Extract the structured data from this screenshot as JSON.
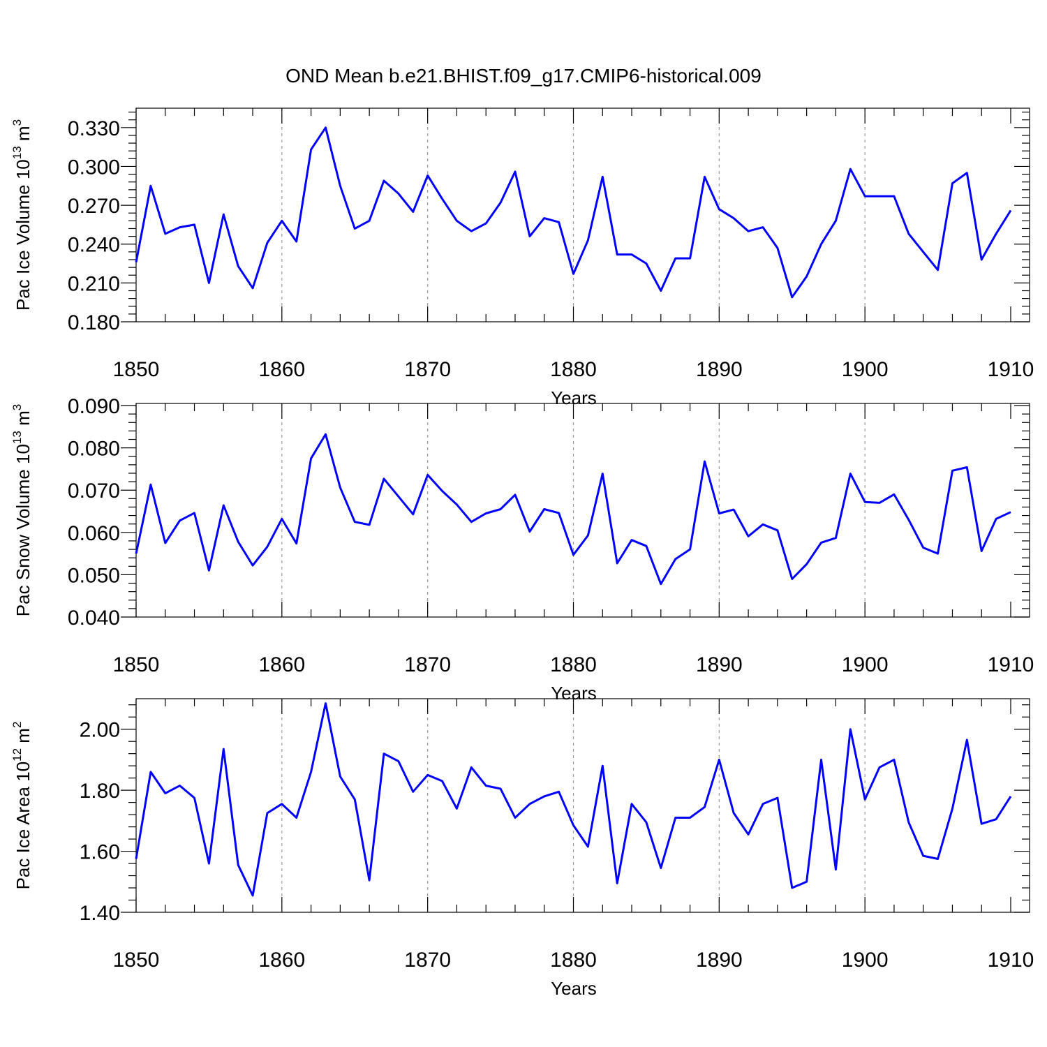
{
  "title": "OND Mean b.e21.BHIST.f09_g17.CMIP6-historical.009",
  "line_color": "#0000ff",
  "grid_color": "#999999",
  "chart_data": [
    {
      "type": "line",
      "name": "pac-ice-volume",
      "xlabel": "Years",
      "ylabel_prefix": "Pac Ice Volume 10",
      "ylabel_exp": "13",
      "ylabel_unit": " m",
      "ylabel_unit_exp": "3",
      "xlim": [
        1850,
        1910
      ],
      "ylim": [
        0.18,
        0.345
      ],
      "x_ticks": [
        "1850",
        "1860",
        "1870",
        "1880",
        "1890",
        "1900",
        "1910"
      ],
      "y_ticks": [
        "0.180",
        "0.210",
        "0.240",
        "0.270",
        "0.300",
        "0.330"
      ],
      "x_grid": [
        1860,
        1870,
        1880,
        1890,
        1900
      ],
      "x": [
        1850,
        1851,
        1852,
        1853,
        1854,
        1855,
        1856,
        1857,
        1858,
        1859,
        1860,
        1861,
        1862,
        1863,
        1864,
        1865,
        1866,
        1867,
        1868,
        1869,
        1870,
        1871,
        1872,
        1873,
        1874,
        1875,
        1876,
        1877,
        1878,
        1879,
        1880,
        1881,
        1882,
        1883,
        1884,
        1885,
        1886,
        1887,
        1888,
        1889,
        1890,
        1891,
        1892,
        1893,
        1894,
        1895,
        1896,
        1897,
        1898,
        1899,
        1900,
        1901,
        1902,
        1903,
        1904,
        1905,
        1906,
        1907,
        1908,
        1909,
        1910
      ],
      "values": [
        0.226,
        0.285,
        0.248,
        0.253,
        0.255,
        0.21,
        0.263,
        0.223,
        0.206,
        0.241,
        0.258,
        0.242,
        0.313,
        0.33,
        0.285,
        0.252,
        0.258,
        0.289,
        0.279,
        0.265,
        0.293,
        0.275,
        0.258,
        0.25,
        0.256,
        0.272,
        0.296,
        0.246,
        0.26,
        0.257,
        0.217,
        0.243,
        0.292,
        0.232,
        0.232,
        0.225,
        0.204,
        0.229,
        0.229,
        0.292,
        0.267,
        0.26,
        0.25,
        0.253,
        0.237,
        0.199,
        0.215,
        0.24,
        0.258,
        0.298,
        0.277,
        0.277,
        0.277,
        0.248,
        0.234,
        0.22,
        0.287,
        0.295,
        0.228,
        0.248,
        0.266
      ]
    },
    {
      "type": "line",
      "name": "pac-snow-volume",
      "xlabel": "Years",
      "ylabel_prefix": "Pac Snow Volume 10",
      "ylabel_exp": "13",
      "ylabel_unit": " m",
      "ylabel_unit_exp": "3",
      "xlim": [
        1850,
        1910
      ],
      "ylim": [
        0.04,
        0.0905
      ],
      "x_ticks": [
        "1850",
        "1860",
        "1870",
        "1880",
        "1890",
        "1900",
        "1910"
      ],
      "y_ticks": [
        "0.040",
        "0.050",
        "0.060",
        "0.070",
        "0.080",
        "0.090"
      ],
      "x_grid": [
        1860,
        1870,
        1880,
        1890,
        1900
      ],
      "x": [
        1850,
        1851,
        1852,
        1853,
        1854,
        1855,
        1856,
        1857,
        1858,
        1859,
        1860,
        1861,
        1862,
        1863,
        1864,
        1865,
        1866,
        1867,
        1868,
        1869,
        1870,
        1871,
        1872,
        1873,
        1874,
        1875,
        1876,
        1877,
        1878,
        1879,
        1880,
        1881,
        1882,
        1883,
        1884,
        1885,
        1886,
        1887,
        1888,
        1889,
        1890,
        1891,
        1892,
        1893,
        1894,
        1895,
        1896,
        1897,
        1898,
        1899,
        1900,
        1901,
        1902,
        1903,
        1904,
        1905,
        1906,
        1907,
        1908,
        1909,
        1910
      ],
      "values": [
        0.055,
        0.0713,
        0.0575,
        0.0628,
        0.0646,
        0.051,
        0.0664,
        0.0578,
        0.0522,
        0.0566,
        0.0632,
        0.0574,
        0.0775,
        0.0832,
        0.0706,
        0.0625,
        0.0618,
        0.0727,
        0.0685,
        0.0643,
        0.0736,
        0.0698,
        0.0666,
        0.0625,
        0.0645,
        0.0655,
        0.0689,
        0.0602,
        0.0655,
        0.0646,
        0.0547,
        0.0593,
        0.0739,
        0.0527,
        0.0582,
        0.0568,
        0.0478,
        0.0537,
        0.056,
        0.0768,
        0.0645,
        0.0654,
        0.0591,
        0.0619,
        0.0605,
        0.049,
        0.0525,
        0.0576,
        0.0587,
        0.0739,
        0.0672,
        0.067,
        0.069,
        0.063,
        0.0564,
        0.055,
        0.0746,
        0.0754,
        0.0556,
        0.0632,
        0.0648
      ]
    },
    {
      "type": "line",
      "name": "pac-ice-area",
      "xlabel": "Years",
      "ylabel_prefix": "Pac Ice Area 10",
      "ylabel_exp": "12",
      "ylabel_unit": " m",
      "ylabel_unit_exp": "2",
      "xlim": [
        1850,
        1910
      ],
      "ylim": [
        1.4,
        2.1
      ],
      "x_ticks": [
        "1850",
        "1860",
        "1870",
        "1880",
        "1890",
        "1900",
        "1910"
      ],
      "y_ticks": [
        "1.40",
        "1.60",
        "1.80",
        "2.00"
      ],
      "x_grid": [
        1860,
        1870,
        1880,
        1890,
        1900
      ],
      "x": [
        1850,
        1851,
        1852,
        1853,
        1854,
        1855,
        1856,
        1857,
        1858,
        1859,
        1860,
        1861,
        1862,
        1863,
        1864,
        1865,
        1866,
        1867,
        1868,
        1869,
        1870,
        1871,
        1872,
        1873,
        1874,
        1875,
        1876,
        1877,
        1878,
        1879,
        1880,
        1881,
        1882,
        1883,
        1884,
        1885,
        1886,
        1887,
        1888,
        1889,
        1890,
        1891,
        1892,
        1893,
        1894,
        1895,
        1896,
        1897,
        1898,
        1899,
        1900,
        1901,
        1902,
        1903,
        1904,
        1905,
        1906,
        1907,
        1908,
        1909,
        1910
      ],
      "values": [
        1.575,
        1.86,
        1.79,
        1.815,
        1.775,
        1.56,
        1.935,
        1.555,
        1.455,
        1.725,
        1.755,
        1.71,
        1.86,
        2.085,
        1.845,
        1.77,
        1.505,
        1.92,
        1.895,
        1.795,
        1.85,
        1.83,
        1.74,
        1.875,
        1.815,
        1.805,
        1.71,
        1.755,
        1.78,
        1.795,
        1.685,
        1.615,
        1.88,
        1.495,
        1.755,
        1.695,
        1.545,
        1.71,
        1.71,
        1.745,
        1.9,
        1.725,
        1.655,
        1.755,
        1.775,
        1.48,
        1.5,
        1.9,
        1.54,
        2.0,
        1.77,
        1.875,
        1.9,
        1.695,
        1.585,
        1.575,
        1.74,
        1.965,
        1.69,
        1.705,
        1.78
      ]
    }
  ]
}
